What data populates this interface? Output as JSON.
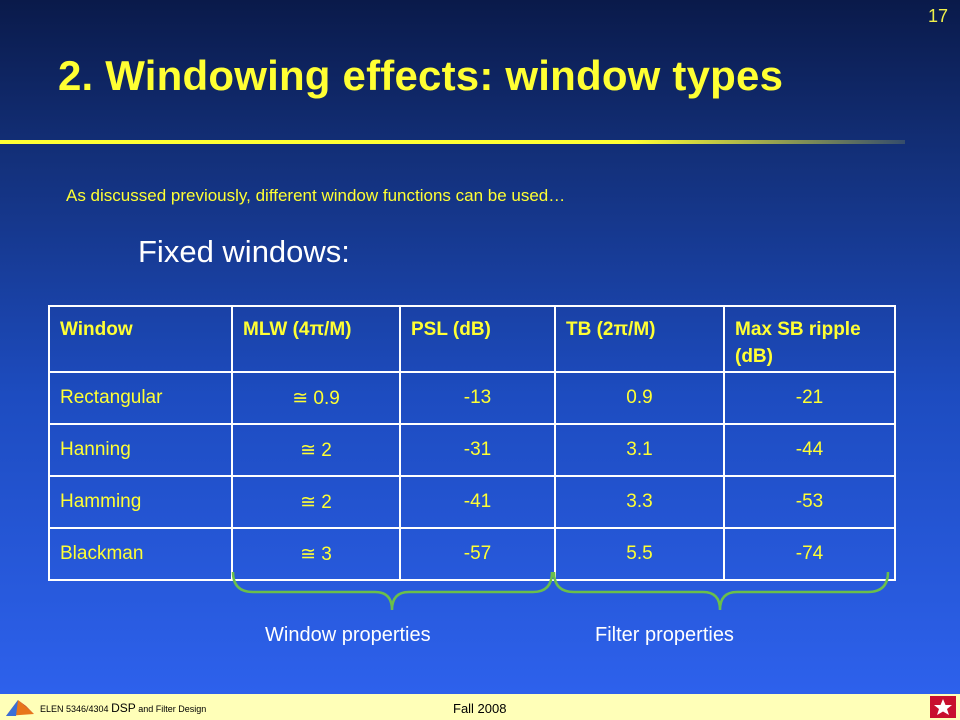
{
  "slide_number": "17",
  "title": "2. Windowing effects: window types",
  "intro": "As discussed previously, different window functions can be used…",
  "subheading": "Fixed windows:",
  "table": {
    "headers": [
      "Window",
      "MLW (4π/M)",
      "PSL (dB)",
      "TB (2π/M)",
      "Max SB ripple (dB)"
    ],
    "rows": [
      [
        "Rectangular",
        "≅ 0.9",
        "-13",
        "0.9",
        "-21"
      ],
      [
        "Hanning",
        "≅ 2",
        "-31",
        "3.1",
        "-44"
      ],
      [
        "Hamming",
        "≅ 2",
        "-41",
        "3.3",
        "-53"
      ],
      [
        "Blackman",
        "≅ 3",
        "-57",
        "5.5",
        "-74"
      ]
    ]
  },
  "brace_labels": {
    "window": "Window properties",
    "filter": "Filter properties"
  },
  "footer": {
    "course_prefix": "ELEN 5346/4304",
    "course_mid": "DSP",
    "course_suffix": "and Filter Design",
    "term": "Fall 2008"
  },
  "colors": {
    "title": "#ffff33",
    "text": "#ffff33",
    "brace": "#6abf4b",
    "footer_band": "#ffffb8"
  }
}
